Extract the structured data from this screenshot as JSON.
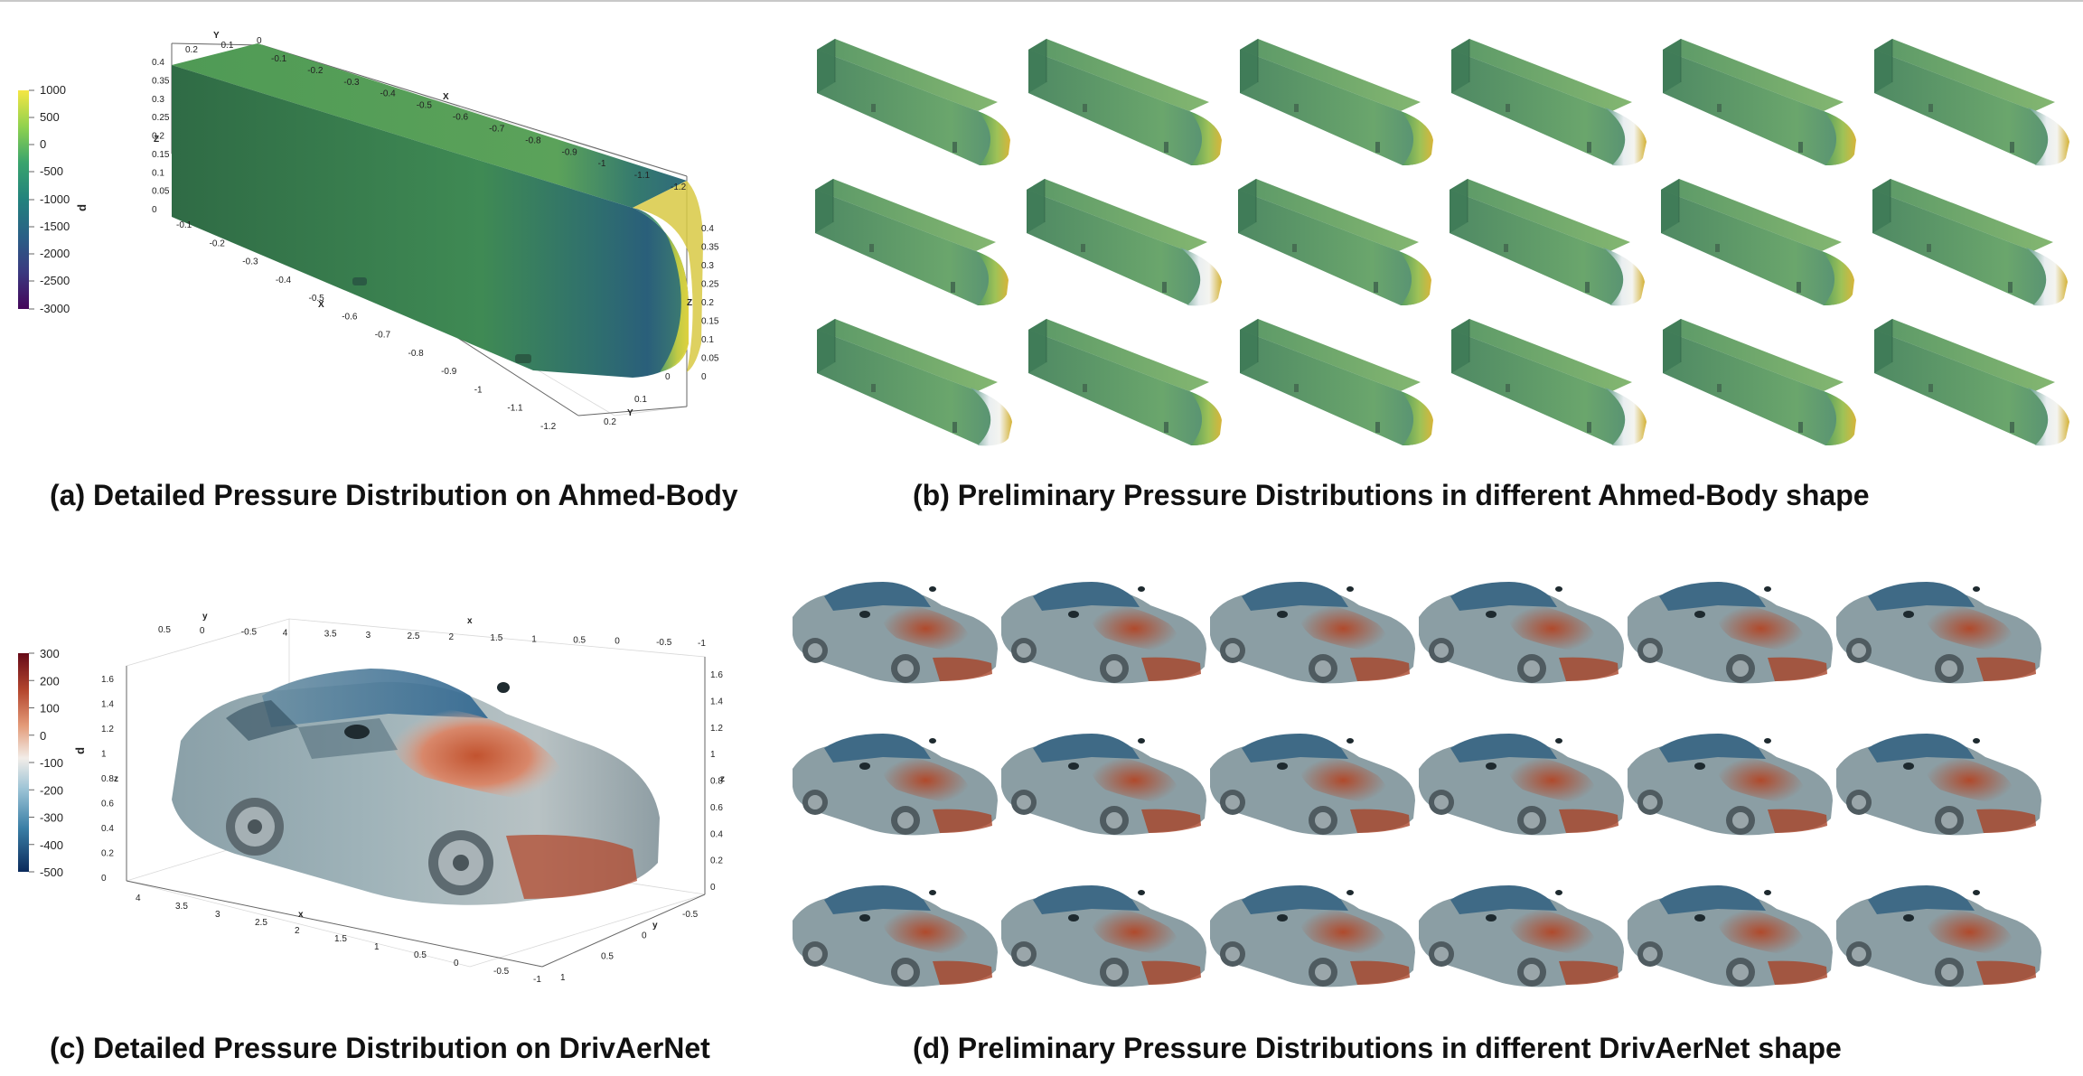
{
  "captions": {
    "a": "(a) Detailed Pressure Distribution on Ahmed-Body",
    "b": "(b) Preliminary Pressure Distributions in different Ahmed-Body shape",
    "c": "(c) Detailed Pressure Distribution on DrivAerNet",
    "d": "(d) Preliminary Pressure Distributions in different DrivAerNet shape"
  },
  "ahmed_colorbar": {
    "title": "p",
    "ticks": [
      "1000",
      "500",
      "0",
      "-500",
      "-1000",
      "-1500",
      "-2000",
      "-2500",
      "-3000"
    ],
    "colors": [
      "#f5e643",
      "#8ed14f",
      "#3aa46d",
      "#22827d",
      "#2a5f86",
      "#3a3a80",
      "#44065a"
    ]
  },
  "drivaer_colorbar": {
    "title": "p",
    "ticks": [
      "300",
      "200",
      "100",
      "0",
      "-100",
      "-200",
      "-300",
      "-400",
      "-500"
    ],
    "colors": [
      "#660a18",
      "#b4462e",
      "#e39a78",
      "#f2ede8",
      "#9dc4d6",
      "#3a7fa6",
      "#0b2a5c"
    ]
  },
  "ahmed_axes": {
    "y_axis_label": "Y",
    "z_axis_label": "Z",
    "x_axis_label": "X",
    "top_y_ticks": [
      "0.2",
      "0.1",
      "0"
    ],
    "top_x_ticks": [
      "-0.1",
      "-0.2",
      "-0.3",
      "-0.4",
      "-0.5",
      "-0.6",
      "-0.7",
      "-0.8",
      "-0.9",
      "-1",
      "-1.1",
      "-1.2"
    ],
    "left_z_ticks": [
      "0.4",
      "0.35",
      "0.3",
      "0.25",
      "0.2",
      "0.15",
      "0.1",
      "0.05",
      "0"
    ],
    "bottom_x_ticks": [
      "-0.1",
      "-0.2",
      "-0.3",
      "-0.4",
      "-0.5",
      "-0.6",
      "-0.7",
      "-0.8",
      "-0.9",
      "-1",
      "-1.1",
      "-1.2"
    ],
    "right_z_ticks": [
      "0.4",
      "0.35",
      "0.3",
      "0.25",
      "0.2",
      "0.15",
      "0.1",
      "0.05",
      "0"
    ],
    "right_y_ticks": [
      "0",
      "0.1",
      "0.2"
    ]
  },
  "drivaer_axes": {
    "y_axis_label": "y",
    "z_axis_label": "z",
    "x_axis_label": "x",
    "top_ticks": [
      "0.5",
      "0",
      "-0.5",
      "4",
      "3.5",
      "3",
      "2.5",
      "2",
      "1.5",
      "1",
      "0.5",
      "0",
      "-0.5",
      "-1"
    ],
    "left_z_ticks": [
      "1.6",
      "1.4",
      "1.2",
      "1",
      "0.8",
      "0.6",
      "0.4",
      "0.2",
      "0"
    ],
    "right_z_ticks": [
      "1.6",
      "1.4",
      "1.2",
      "1",
      "0.8",
      "0.6",
      "0.4",
      "0.2",
      "0"
    ],
    "bottom_x_ticks": [
      "4",
      "3.5",
      "3",
      "2.5",
      "2",
      "1.5",
      "1",
      "0.5",
      "0",
      "-0.5",
      "-1"
    ],
    "right_y_ticks": [
      "-0.5",
      "0",
      "0.5",
      "1"
    ]
  }
}
